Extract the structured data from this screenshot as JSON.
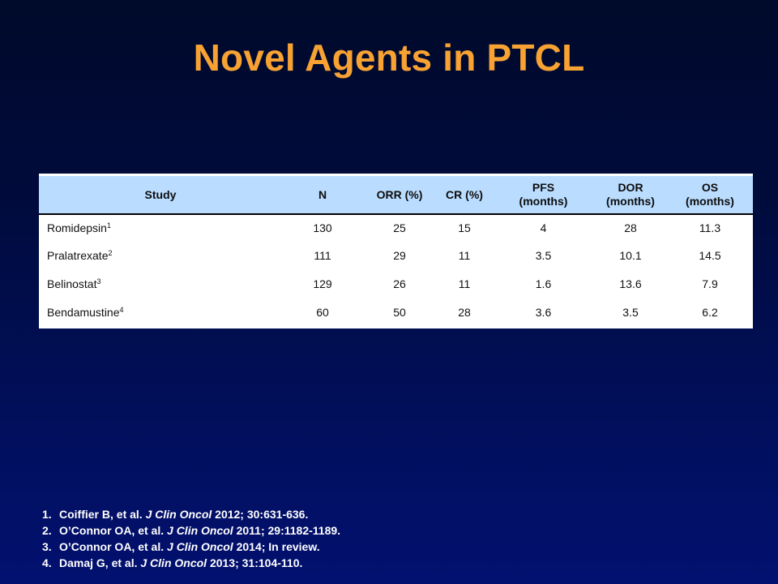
{
  "slide": {
    "title": "Novel Agents in PTCL"
  },
  "table": {
    "headers": {
      "study": "Study",
      "n": "N",
      "orr": "ORR (%)",
      "cr": "CR (%)",
      "pfs_line1": "PFS",
      "pfs_line2": "(months)",
      "dor_line1": "DOR",
      "dor_line2": "(months)",
      "os_line1": "OS",
      "os_line2": "(months)"
    },
    "rows": [
      {
        "study": "Romidepsin",
        "ref": "1",
        "n": "130",
        "orr": "25",
        "cr": "15",
        "pfs": "4",
        "dor": "28",
        "os": "11.3"
      },
      {
        "study": "Pralatrexate",
        "ref": "2",
        "n": "111",
        "orr": "29",
        "cr": "11",
        "pfs": "3.5",
        "dor": "10.1",
        "os": "14.5"
      },
      {
        "study": "Belinostat",
        "ref": "3",
        "n": "129",
        "orr": "26",
        "cr": "11",
        "pfs": "1.6",
        "dor": "13.6",
        "os": "7.9"
      },
      {
        "study": "Bendamustine",
        "ref": "4",
        "n": "60",
        "orr": "50",
        "cr": "28",
        "pfs": "3.6",
        "dor": "3.5",
        "os": "6.2"
      }
    ]
  },
  "references": [
    {
      "num": "1.",
      "authors": "Coiffier B, et al.",
      "journal": "J Clin Oncol",
      "details": "2012; 30:631-636."
    },
    {
      "num": "2.",
      "authors": "O’Connor OA, et al.",
      "journal": "J Clin Oncol",
      "details": "2011; 29:1182-1189."
    },
    {
      "num": "3.",
      "authors": "O’Connor OA, et al.",
      "journal": "J Clin Oncol",
      "details": "2014; In review."
    },
    {
      "num": "4.",
      "authors": "Damaj G, et al.",
      "journal": "J Clin Oncol",
      "details": "2013; 31:104-110."
    }
  ],
  "colors": {
    "title": "#f7a232",
    "header_bg": "#b9dcff",
    "background": "#000b3d"
  }
}
